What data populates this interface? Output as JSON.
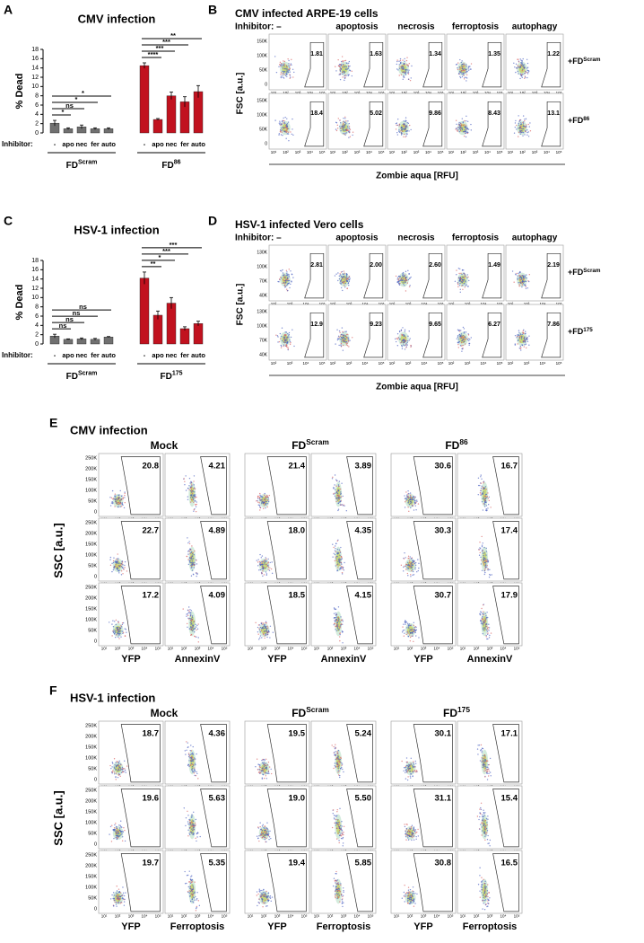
{
  "panels": [
    {
      "letter": "A",
      "kind": "bar",
      "title": "CMV infection",
      "y_label": "% Dead",
      "ylim": [
        0,
        18
      ],
      "yticks": [
        0,
        2,
        4,
        6,
        8,
        10,
        12,
        14,
        16,
        18
      ],
      "inhibitor_label": "Inhibitor:",
      "categories": [
        "-",
        "apo",
        "nec",
        "fer",
        "auto"
      ],
      "groups": [
        {
          "label": "FD",
          "label_sup": "Scram",
          "color": "#707070",
          "values": [
            2.1,
            0.9,
            1.3,
            0.9,
            0.9
          ],
          "errors": [
            0.6,
            0.2,
            0.4,
            0.2,
            0.2
          ],
          "significance": [
            "*",
            "ns",
            "*",
            "*"
          ]
        },
        {
          "label": "FD",
          "label_sup": "86",
          "color": "#c1121f",
          "values": [
            14.5,
            2.9,
            8.0,
            6.7,
            8.9
          ],
          "errors": [
            0.6,
            0.2,
            0.8,
            1.1,
            1.3
          ],
          "significance": [
            "****",
            "***",
            "***",
            "**"
          ]
        }
      ]
    },
    {
      "letter": "B",
      "kind": "flow-grid",
      "title": "CMV infected ARPE-19 cells",
      "column_labels": [
        "Inhibitor: –",
        "apoptosis",
        "necrosis",
        "ferroptosis",
        "autophagy"
      ],
      "row_labels": [
        {
          "label": "+FD",
          "label_sup": "Scram"
        },
        {
          "label": "+FD",
          "label_sup": "86"
        }
      ],
      "row_colors": [
        "#000000",
        "#d01010"
      ],
      "y_label": "FSC [a.u.]",
      "x_label": "Zombie aqua [RFU]",
      "yticks": [
        "150K",
        "100K",
        "50K",
        "0"
      ],
      "xticks": [
        "10¹",
        "10²",
        "10³",
        "10⁴",
        "10⁵"
      ],
      "gate_values": [
        [
          "1.81",
          "1.63",
          "1.34",
          "1.35",
          "1.22"
        ],
        [
          "18.4",
          "5.02",
          "9.86",
          "8.43",
          "13.1"
        ]
      ]
    },
    {
      "letter": "C",
      "kind": "bar",
      "title": "HSV-1 infection",
      "y_label": "% Dead",
      "ylim": [
        0,
        18
      ],
      "yticks": [
        0,
        2,
        4,
        6,
        8,
        10,
        12,
        14,
        16,
        18
      ],
      "inhibitor_label": "Inhibitor:",
      "categories": [
        "-",
        "apo",
        "nec",
        "fer",
        "auto"
      ],
      "groups": [
        {
          "label": "FD",
          "label_sup": "Scram",
          "color": "#707070",
          "values": [
            1.7,
            1.0,
            1.1,
            1.0,
            1.5
          ],
          "errors": [
            0.4,
            0.1,
            0.2,
            0.2,
            0.1
          ],
          "significance": [
            "ns",
            "ns",
            "ns",
            "ns"
          ]
        },
        {
          "label": "FD",
          "label_sup": "175",
          "color": "#c1121f",
          "values": [
            14.2,
            6.2,
            8.8,
            3.3,
            4.4
          ],
          "errors": [
            1.3,
            0.9,
            1.2,
            0.4,
            0.5
          ],
          "significance": [
            "**",
            "*",
            "***",
            "***"
          ]
        }
      ]
    },
    {
      "letter": "D",
      "kind": "flow-grid",
      "title": "HSV-1 infected Vero cells",
      "column_labels": [
        "Inhibitor: –",
        "apoptosis",
        "necrosis",
        "ferroptosis",
        "autophagy"
      ],
      "row_labels": [
        {
          "label": "+FD",
          "label_sup": "Scram"
        },
        {
          "label": "+FD",
          "label_sup": "175"
        }
      ],
      "row_colors": [
        "#000000",
        "#d01010"
      ],
      "y_label": "FSC [a.u.]",
      "x_label": "Zombie aqua [RFU]",
      "yticks": [
        "130K",
        "100K",
        "70K",
        "40K"
      ],
      "xticks": [
        "10²",
        "10³",
        "10⁴",
        "10⁵"
      ],
      "gate_values": [
        [
          "2.81",
          "2.00",
          "2.60",
          "1.49",
          "2.19"
        ],
        [
          "12.9",
          "9.23",
          "9.65",
          "6.27",
          "7.86"
        ]
      ]
    },
    {
      "letter": "E",
      "kind": "flow-matrix",
      "title": "CMV infection",
      "groups": [
        {
          "label": "Mock"
        },
        {
          "label": "FD",
          "label_sup": "Scram"
        },
        {
          "label": "FD",
          "label_sup": "86"
        }
      ],
      "group_colors": [
        "#000000",
        "#000000",
        "#d01010"
      ],
      "y_label": "SSC [a.u.]",
      "x_labels": [
        "YFP",
        "AnnexinV"
      ],
      "yticks": [
        "250K",
        "200K",
        "150K",
        "100K",
        "50K",
        "0"
      ],
      "xticks": [
        "10¹",
        "10²",
        "10³",
        "10⁴",
        "10⁵"
      ],
      "gate_values": [
        [
          "20.8",
          "4.21",
          "21.4",
          "3.89",
          "30.6",
          "16.7"
        ],
        [
          "22.7",
          "4.89",
          "18.0",
          "4.35",
          "30.3",
          "17.4"
        ],
        [
          "17.2",
          "4.09",
          "18.5",
          "4.15",
          "30.7",
          "17.9"
        ]
      ]
    },
    {
      "letter": "F",
      "kind": "flow-matrix",
      "title": "HSV-1 infection",
      "groups": [
        {
          "label": "Mock"
        },
        {
          "label": "FD",
          "label_sup": "Scram"
        },
        {
          "label": "FD",
          "label_sup": "175"
        }
      ],
      "group_colors": [
        "#000000",
        "#000000",
        "#d01010"
      ],
      "y_label": "SSC [a.u.]",
      "x_labels": [
        "YFP",
        "Ferroptosis"
      ],
      "yticks": [
        "250K",
        "200K",
        "150K",
        "100K",
        "50K",
        "0"
      ],
      "xticks": [
        "10¹",
        "10²",
        "10³",
        "10⁴",
        "10⁵"
      ],
      "gate_values": [
        [
          "18.7",
          "4.36",
          "19.5",
          "5.24",
          "30.1",
          "17.1"
        ],
        [
          "19.6",
          "5.63",
          "19.0",
          "5.50",
          "31.1",
          "15.4"
        ],
        [
          "19.7",
          "5.35",
          "19.4",
          "5.85",
          "30.8",
          "16.5"
        ]
      ]
    }
  ]
}
